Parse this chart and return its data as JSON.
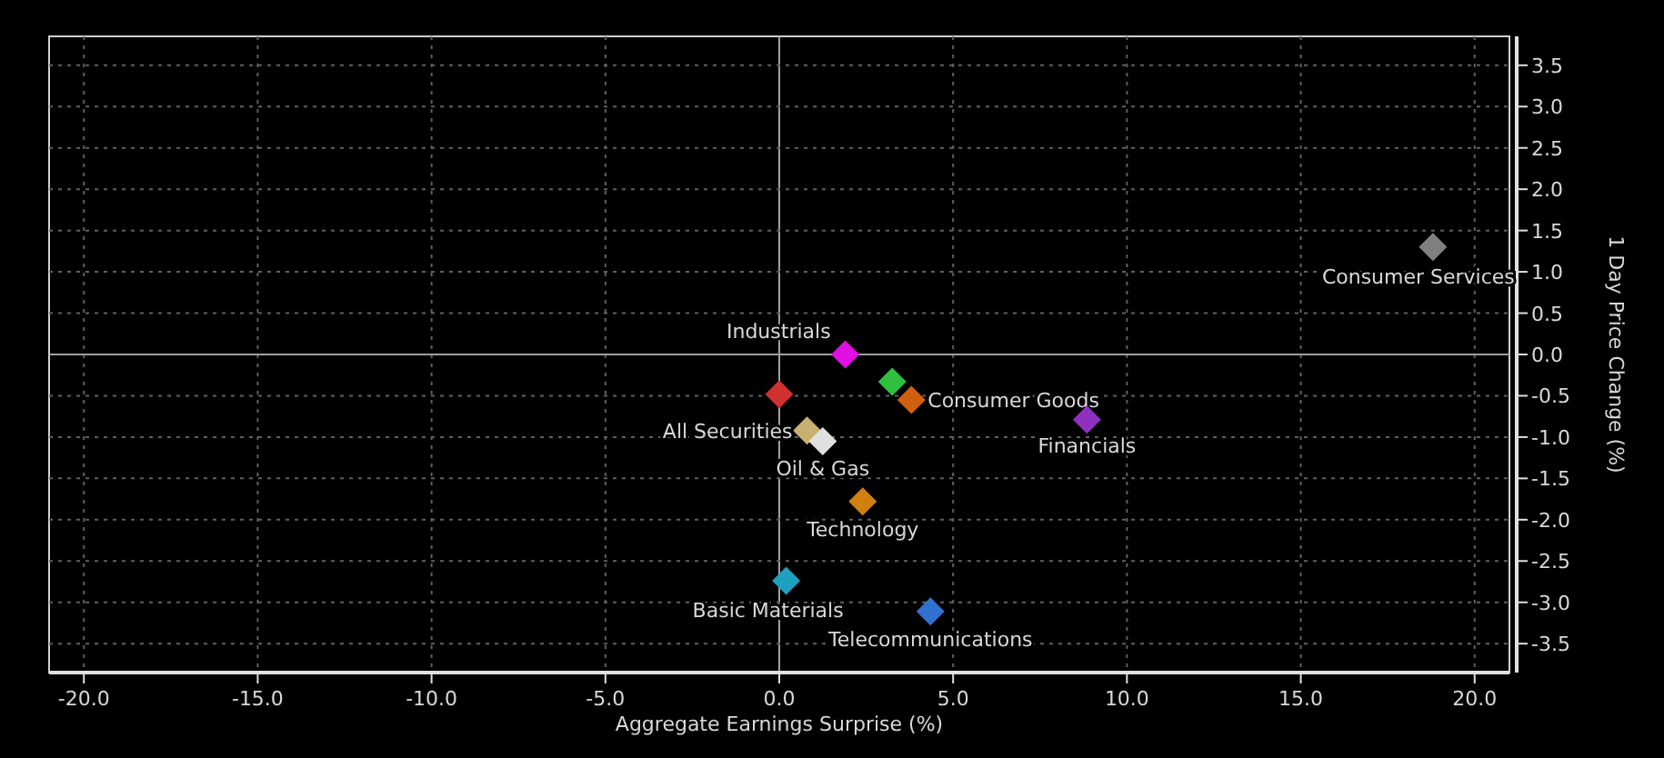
{
  "chart_data": {
    "type": "scatter",
    "xlabel": "Aggregate Earnings Surprise (%)",
    "ylabel": "1 Day Price Change (%)",
    "marker": "diamond",
    "grid": true,
    "xlim": [
      -21,
      21
    ],
    "ylim": [
      -3.85,
      3.85
    ],
    "xticks": [
      {
        "value": -20,
        "label": "-20.0"
      },
      {
        "value": -15,
        "label": "-15.0"
      },
      {
        "value": -10,
        "label": "-10.0"
      },
      {
        "value": -5,
        "label": "-5.0"
      },
      {
        "value": 0,
        "label": "0.0"
      },
      {
        "value": 5,
        "label": "5.0"
      },
      {
        "value": 10,
        "label": "10.0"
      },
      {
        "value": 15,
        "label": "15.0"
      },
      {
        "value": 20,
        "label": "20.0"
      }
    ],
    "yticks": [
      {
        "value": -3.5,
        "label": "-3.5"
      },
      {
        "value": -3,
        "label": "-3.0"
      },
      {
        "value": -2.5,
        "label": "-2.5"
      },
      {
        "value": -2,
        "label": "-2.0"
      },
      {
        "value": -1.5,
        "label": "-1.5"
      },
      {
        "value": -1,
        "label": "-1.0"
      },
      {
        "value": -0.5,
        "label": "-0.5"
      },
      {
        "value": 0,
        "label": "0.0"
      },
      {
        "value": 0.5,
        "label": "0.5"
      },
      {
        "value": 1,
        "label": "1.0"
      },
      {
        "value": 1.5,
        "label": "1.5"
      },
      {
        "value": 2,
        "label": "2.0"
      },
      {
        "value": 2.5,
        "label": "2.5"
      },
      {
        "value": 3,
        "label": "3.0"
      },
      {
        "value": 3.5,
        "label": "3.5"
      }
    ],
    "series": [
      {
        "name": "Consumer Services",
        "color": "#808080",
        "x": [
          18.8
        ],
        "values": [
          1.3
        ]
      },
      {
        "name": "Industrials",
        "color": "#e010e0",
        "x": [
          1.9
        ],
        "values": [
          0.0
        ]
      },
      {
        "color": "#30c040",
        "x": [
          3.25
        ],
        "values": [
          -0.33
        ]
      },
      {
        "name": "Consumer Goods",
        "color": "#d06010",
        "x": [
          3.8
        ],
        "values": [
          -0.55
        ]
      },
      {
        "color": "#d03030",
        "x": [
          0.0
        ],
        "values": [
          -0.48
        ]
      },
      {
        "name": "All Securities",
        "color": "#c8b070",
        "x": [
          0.8
        ],
        "values": [
          -0.92
        ]
      },
      {
        "name": "Oil & Gas",
        "color": "#e0e0e0",
        "x": [
          1.25
        ],
        "values": [
          -1.05
        ]
      },
      {
        "name": "Financials",
        "color": "#9030c0",
        "x": [
          8.85
        ],
        "values": [
          -0.79
        ]
      },
      {
        "name": "Technology",
        "color": "#d08010",
        "x": [
          2.4
        ],
        "values": [
          -1.78
        ]
      },
      {
        "name": "Basic Materials",
        "color": "#20a0c0",
        "x": [
          0.2
        ],
        "values": [
          -2.74
        ]
      },
      {
        "name": "Telecommunications",
        "color": "#3070d0",
        "x": [
          4.35
        ],
        "values": [
          -3.11
        ]
      }
    ]
  }
}
